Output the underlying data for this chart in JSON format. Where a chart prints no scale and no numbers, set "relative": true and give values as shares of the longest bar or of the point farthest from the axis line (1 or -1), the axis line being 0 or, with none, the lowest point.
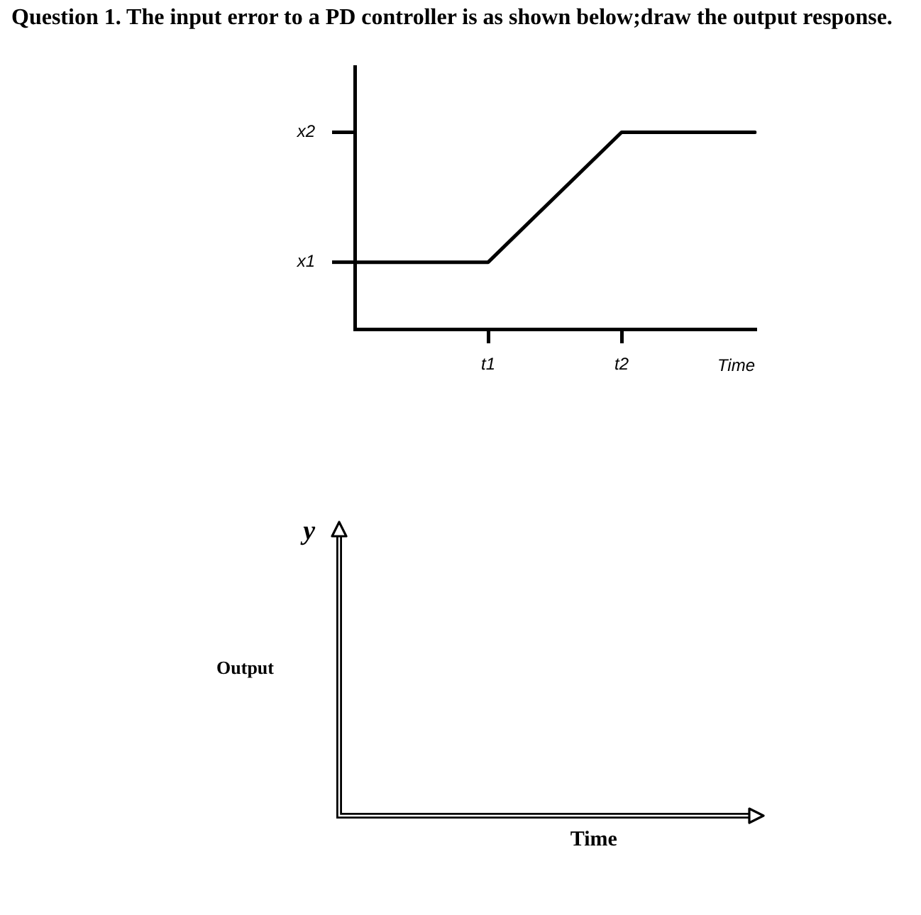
{
  "chart_data": [
    {
      "type": "line",
      "title": "Question 1. The input error to a PD controller is as shown below;draw the output response.",
      "xlabel": "Time",
      "categories": [
        null,
        "t1",
        "t2",
        null
      ],
      "series": [
        {
          "color": "#000000",
          "values": [
            0.34,
            0.34,
            1,
            1
          ]
        }
      ],
      "relative": true,
      "marker": "none",
      "annotations": [
        "x2",
        "x1"
      ]
    },
    {
      "type": "other",
      "xlabel": "Time",
      "ylabel": "Output",
      "annotations": [
        "y"
      ]
    }
  ]
}
